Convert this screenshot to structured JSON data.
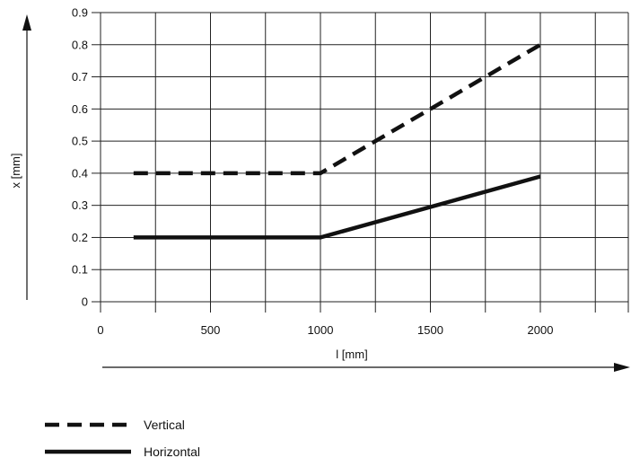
{
  "chart_data": {
    "type": "line",
    "title": "",
    "xlabel": "l [mm]",
    "ylabel": "x [mm]",
    "xlim": [
      0,
      2400
    ],
    "ylim": [
      0,
      0.9
    ],
    "x_ticks": [
      0,
      500,
      1000,
      1500,
      2000
    ],
    "x_tick_labels": [
      "0",
      "500",
      "1000",
      "1500",
      "2000"
    ],
    "x_gridlines": [
      0,
      250,
      500,
      750,
      1000,
      1250,
      1500,
      1750,
      2000,
      2250,
      2400
    ],
    "y_ticks": [
      0,
      0.1,
      0.2,
      0.3,
      0.4,
      0.5,
      0.6,
      0.7,
      0.8,
      0.9
    ],
    "y_tick_labels": [
      "0",
      "0.1",
      "0.2",
      "0.3",
      "0.4",
      "0.5",
      "0.6",
      "0.7",
      "0.8",
      "0.9"
    ],
    "grid": true,
    "legend_position": "bottom-left",
    "series": [
      {
        "name": "Vertical",
        "line_style": "dashed",
        "color": "#111111",
        "points": [
          [
            150,
            0.4
          ],
          [
            1000,
            0.4
          ],
          [
            2000,
            0.8
          ]
        ]
      },
      {
        "name": "Horizontal",
        "line_style": "solid",
        "color": "#111111",
        "points": [
          [
            150,
            0.2
          ],
          [
            1000,
            0.2
          ],
          [
            2000,
            0.39
          ]
        ]
      }
    ]
  }
}
